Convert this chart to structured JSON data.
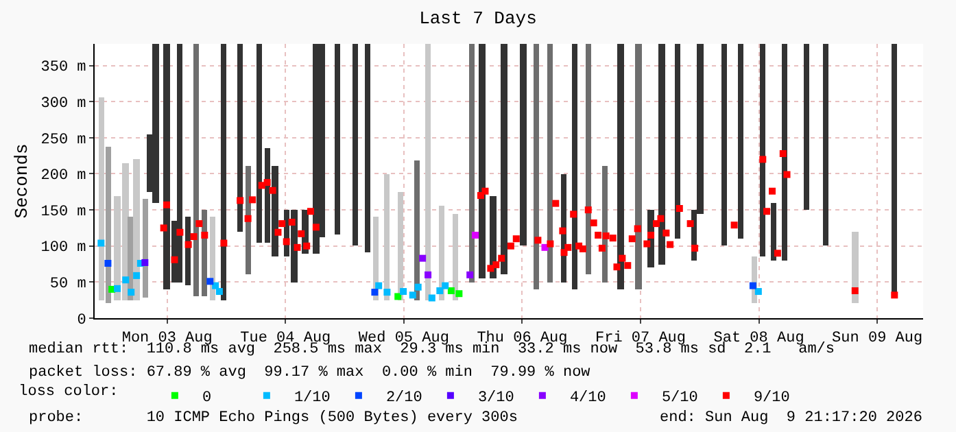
{
  "chart_data": {
    "type": "bar",
    "title": "Last 7 Days",
    "ylabel": "Seconds",
    "legend_title": "loss color:",
    "legend": "bottom",
    "grid": true,
    "marker": "square",
    "xlim": [
      "2026-08-02T21:18",
      "2026-08-09T21:18"
    ],
    "xticks": [
      {
        "value": "2026-08-03T12:00",
        "label": "Mon 03 Aug"
      },
      {
        "value": "2026-08-04T12:00",
        "label": "Tue 04 Aug"
      },
      {
        "value": "2026-08-05T12:00",
        "label": "Wed 05 Aug"
      },
      {
        "value": "2026-08-06T12:00",
        "label": "Thu 06 Aug"
      },
      {
        "value": "2026-08-07T12:00",
        "label": "Fri 07 Aug"
      },
      {
        "value": "2026-08-08T12:00",
        "label": "Sat 08 Aug"
      },
      {
        "value": "2026-08-09T12:00",
        "label": "Sun 09 Aug"
      }
    ],
    "ylim": [
      0,
      380
    ],
    "yticks": [
      0,
      {
        "value": 50,
        "label": "50 m"
      },
      {
        "value": 100,
        "label": "100 m"
      },
      {
        "value": 150,
        "label": "150 m"
      },
      {
        "value": 200,
        "label": "200 m"
      },
      {
        "value": 250,
        "label": "250 m"
      },
      {
        "value": 300,
        "label": "300 m"
      },
      {
        "value": 350,
        "label": "350 m"
      }
    ],
    "annotations": [
      "median rtt:  110.8 ms avg  258.5 ms max  29.3 ms min  33.2 ms now  53.8 ms sd  2.1   am/s",
      "packet loss: 67.89 % avg  99.17 % max  0.00 % min  79.99 % now",
      "probe:       10 ICMP Echo Pings (500 Bytes) every 300s",
      "end: Sun Aug  9 21:17:20 2026"
    ],
    "series": [
      {
        "type": "bar",
        "x": [
          "2026-08-02T22:36",
          "2026-08-03T00:00",
          "2026-08-03T01:54",
          "2026-08-03T03:36",
          "2026-08-03T04:42",
          "2026-08-03T05:48",
          "2026-08-03T07:30",
          "2026-08-03T08:36",
          "2026-08-03T09:42",
          "2026-08-03T11:54",
          "2026-08-03T13:30",
          "2026-08-03T14:36",
          "2026-08-03T16:18",
          "2026-08-03T17:54",
          "2026-08-03T19:36",
          "2026-08-03T21:18",
          "2026-08-03T23:30",
          "2026-08-04T02:48",
          "2026-08-04T04:24",
          "2026-08-04T06:36",
          "2026-08-04T08:18",
          "2026-08-04T09:54",
          "2026-08-04T12:12",
          "2026-08-04T13:48",
          "2026-08-04T16:00",
          "2026-08-04T18:12",
          "2026-08-04T19:18",
          "2026-08-04T22:36",
          "2026-08-05T02:12",
          "2026-08-05T04:42",
          "2026-08-05T06:24",
          "2026-08-05T08:36",
          "2026-08-05T11:18",
          "2026-08-05T14:42",
          "2026-08-05T16:54",
          "2026-08-05T19:36",
          "2026-08-05T22:24",
          "2026-08-06T01:42",
          "2026-08-06T03:54",
          "2026-08-06T06:06",
          "2026-08-06T08:18",
          "2026-08-06T12:12",
          "2026-08-06T14:54",
          "2026-08-06T17:42",
          "2026-08-06T20:30",
          "2026-08-06T22:42",
          "2026-08-07T01:24",
          "2026-08-07T04:42",
          "2026-08-07T08:00",
          "2026-08-07T11:36",
          "2026-08-07T14:06",
          "2026-08-07T16:18",
          "2026-08-07T19:36",
          "2026-08-07T22:54",
          "2026-08-08T00:06",
          "2026-08-08T05:00",
          "2026-08-08T08:18",
          "2026-08-08T11:06",
          "2026-08-08T12:48",
          "2026-08-08T15:00",
          "2026-08-08T17:12",
          "2026-08-08T21:36",
          "2026-08-09T01:30",
          "2026-08-09T07:30",
          "2026-08-09T15:30"
        ],
        "base": [
          25,
          21,
          25,
          25,
          25,
          25,
          28,
          175,
          160,
          40,
          50,
          50,
          45,
          30,
          30,
          25,
          25,
          120,
          60,
          105,
          105,
          85,
          85,
          50,
          90,
          90,
          113,
          115,
          100,
          91,
          25,
          25,
          25,
          25,
          25,
          25,
          25,
          50,
          55,
          55,
          60,
          100,
          40,
          50,
          50,
          40,
          60,
          50,
          40,
          40,
          70,
          75,
          110,
          80,
          145,
          100,
          110,
          20,
          85,
          80,
          80,
          150,
          100,
          20,
          30
        ],
        "values": [
          280,
          216,
          145,
          190,
          115,
          195,
          137,
          80,
          220,
          340,
          85,
          330,
          95,
          350,
          120,
          115,
          355,
          260,
          150,
          275,
          130,
          125,
          65,
          100,
          60,
          290,
          267,
          265,
          280,
          289,
          115,
          175,
          150,
          193,
          355,
          130,
          120,
          330,
          325,
          115,
          320,
          280,
          340,
          330,
          150,
          340,
          320,
          160,
          340,
          340,
          80,
          305,
          270,
          70,
          235,
          280,
          270,
          65,
          295,
          80,
          300,
          230,
          280,
          100,
          350
        ],
        "colors": [
          "#c8c8c8",
          "#a0a0a0",
          "#c8c8c8",
          "#c8c8c8",
          "#a0a0a0",
          "#c8c8c8",
          "#a0a0a0",
          "#333333",
          "#333333",
          "#333333",
          "#333333",
          "#333333",
          "#333333",
          "#6e6e6e",
          "#6e6e6e",
          "#c8c8c8",
          "#333333",
          "#333333",
          "#6e6e6e",
          "#333333",
          "#333333",
          "#333333",
          "#333333",
          "#333333",
          "#333333",
          "#333333",
          "#333333",
          "#333333",
          "#333333",
          "#333333",
          "#c8c8c8",
          "#c8c8c8",
          "#c8c8c8",
          "#6e6e6e",
          "#c8c8c8",
          "#c8c8c8",
          "#c8c8c8",
          "#6e6e6e",
          "#333333",
          "#333333",
          "#333333",
          "#333333",
          "#6e6e6e",
          "#6e6e6e",
          "#333333",
          "#333333",
          "#6e6e6e",
          "#6e6e6e",
          "#333333",
          "#6e6e6e",
          "#333333",
          "#333333",
          "#333333",
          "#333333",
          "#333333",
          "#333333",
          "#333333",
          "#c8c8c8",
          "#333333",
          "#333333",
          "#333333",
          "#333333",
          "#333333",
          "#c8c8c8",
          "#333333"
        ]
      },
      {
        "type": "scatter",
        "name": "0",
        "color": "#00ff00",
        "x": [
          "2026-08-03T00:48",
          "2026-08-05T10:48",
          "2026-08-05T21:36",
          "2026-08-05T23:12"
        ],
        "values": [
          40,
          30,
          38,
          34
        ]
      },
      {
        "type": "scatter",
        "name": "1/10",
        "color": "#00bbff",
        "x": [
          "2026-08-02T22:36",
          "2026-08-03T01:54",
          "2026-08-03T03:36",
          "2026-08-03T04:42",
          "2026-08-03T05:48",
          "2026-08-03T06:36",
          "2026-08-03T21:48",
          "2026-08-03T22:36",
          "2026-08-05T06:54",
          "2026-08-05T08:36",
          "2026-08-05T11:54",
          "2026-08-05T13:48",
          "2026-08-05T14:54",
          "2026-08-05T17:42",
          "2026-08-05T19:18",
          "2026-08-05T20:24",
          "2026-08-08T11:54"
        ],
        "values": [
          104,
          41,
          53,
          36,
          59,
          76,
          45,
          37,
          45,
          36,
          37,
          32,
          43,
          28,
          38,
          45,
          37
        ]
      },
      {
        "type": "scatter",
        "name": "2/10",
        "color": "#0044ff",
        "x": [
          "2026-08-03T00:00",
          "2026-08-03T20:42",
          "2026-08-05T06:06",
          "2026-08-08T10:48"
        ],
        "values": [
          76,
          51,
          36,
          45
        ]
      },
      {
        "type": "scatter",
        "name": "3/10",
        "color": "#5500ff",
        "x": [
          "2026-08-03T07:30"
        ],
        "values": [
          77
        ]
      },
      {
        "type": "scatter",
        "name": "4/10",
        "color": "#8800ff",
        "x": [
          "2026-08-05T15:48",
          "2026-08-05T16:54",
          "2026-08-06T01:24"
        ],
        "values": [
          83,
          60,
          60
        ]
      },
      {
        "type": "scatter",
        "name": "5/10",
        "color": "#dd00ff",
        "x": [
          "2026-08-06T02:30",
          "2026-08-06T16:36"
        ],
        "values": [
          115,
          98
        ]
      },
      {
        "type": "scatter",
        "name": "9/10",
        "color": "#ff0000",
        "x": [
          "2026-08-03T11:18",
          "2026-08-03T11:54",
          "2026-08-03T13:30",
          "2026-08-03T14:36",
          "2026-08-03T16:18",
          "2026-08-03T17:24",
          "2026-08-03T18:30",
          "2026-08-03T19:36",
          "2026-08-03T23:30",
          "2026-08-04T02:48",
          "2026-08-04T04:24",
          "2026-08-04T05:18",
          "2026-08-04T07:12",
          "2026-08-04T08:18",
          "2026-08-04T09:24",
          "2026-08-04T10:30",
          "2026-08-04T11:18",
          "2026-08-04T12:12",
          "2026-08-04T13:18",
          "2026-08-04T14:24",
          "2026-08-04T15:12",
          "2026-08-04T16:18",
          "2026-08-04T17:06",
          "2026-08-04T18:12",
          "2026-08-06T03:36",
          "2026-08-06T04:30",
          "2026-08-06T05:36",
          "2026-08-06T06:42",
          "2026-08-06T07:48",
          "2026-08-06T09:42",
          "2026-08-06T10:48",
          "2026-08-06T15:12",
          "2026-08-06T17:42",
          "2026-08-06T18:48",
          "2026-08-06T20:12",
          "2026-08-06T20:30",
          "2026-08-06T21:18",
          "2026-08-06T22:24",
          "2026-08-06T23:30",
          "2026-08-07T00:18",
          "2026-08-07T01:24",
          "2026-08-07T02:30",
          "2026-08-07T03:24",
          "2026-08-07T04:12",
          "2026-08-07T05:00",
          "2026-08-07T06:24",
          "2026-08-07T07:12",
          "2026-08-07T08:18",
          "2026-08-07T09:24",
          "2026-08-07T10:18",
          "2026-08-07T11:24",
          "2026-08-07T13:18",
          "2026-08-07T14:06",
          "2026-08-07T15:12",
          "2026-08-07T16:06",
          "2026-08-07T17:12",
          "2026-08-07T18:00",
          "2026-08-07T19:54",
          "2026-08-07T22:06",
          "2026-08-07T23:00",
          "2026-08-08T07:00",
          "2026-08-08T12:48",
          "2026-08-08T13:36",
          "2026-08-08T14:42",
          "2026-08-08T15:48",
          "2026-08-08T16:54",
          "2026-08-08T17:42",
          "2026-08-09T07:30",
          "2026-08-09T15:30"
        ],
        "values": [
          125,
          157,
          81,
          119,
          102,
          113,
          131,
          115,
          104,
          163,
          138,
          164,
          184,
          188,
          177,
          119,
          131,
          106,
          133,
          98,
          117,
          100,
          148,
          126,
          170,
          176,
          69,
          74,
          83,
          100,
          110,
          108,
          103,
          159,
          121,
          91,
          98,
          144,
          100,
          96,
          150,
          132,
          115,
          97,
          114,
          111,
          71,
          83,
          73,
          110,
          124,
          103,
          115,
          131,
          138,
          118,
          102,
          152,
          131,
          97,
          129,
          220,
          148,
          176,
          90,
          228,
          199,
          38,
          32
        ]
      }
    ]
  }
}
